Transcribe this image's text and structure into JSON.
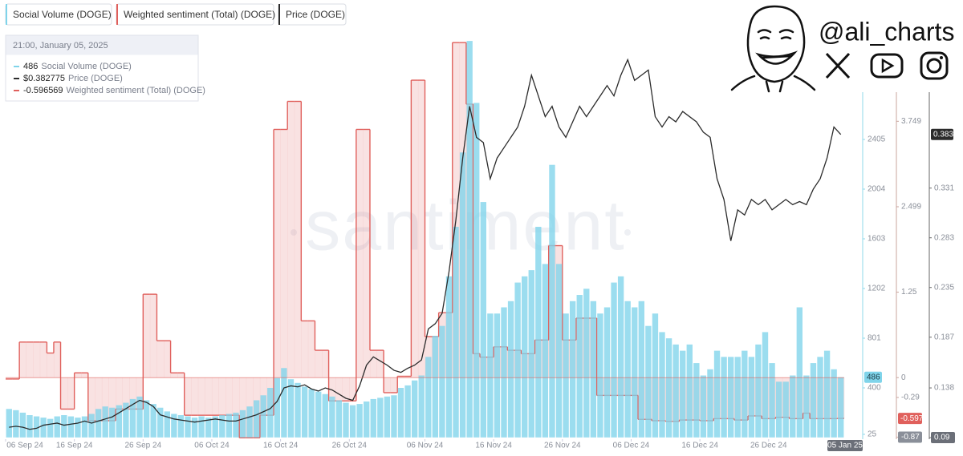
{
  "chart_data": {
    "type": "combo",
    "x": [
      "2024-09-06",
      "2024-09-07",
      "2024-09-08",
      "2024-09-09",
      "2024-09-10",
      "2024-09-11",
      "2024-09-12",
      "2024-09-13",
      "2024-09-14",
      "2024-09-15",
      "2024-09-16",
      "2024-09-17",
      "2024-09-18",
      "2024-09-19",
      "2024-09-20",
      "2024-09-21",
      "2024-09-22",
      "2024-09-23",
      "2024-09-24",
      "2024-09-25",
      "2024-09-26",
      "2024-09-27",
      "2024-09-28",
      "2024-09-29",
      "2024-09-30",
      "2024-10-01",
      "2024-10-02",
      "2024-10-03",
      "2024-10-04",
      "2024-10-05",
      "2024-10-06",
      "2024-10-07",
      "2024-10-08",
      "2024-10-09",
      "2024-10-10",
      "2024-10-11",
      "2024-10-12",
      "2024-10-13",
      "2024-10-14",
      "2024-10-15",
      "2024-10-16",
      "2024-10-17",
      "2024-10-18",
      "2024-10-19",
      "2024-10-20",
      "2024-10-21",
      "2024-10-22",
      "2024-10-23",
      "2024-10-24",
      "2024-10-25",
      "2024-10-26",
      "2024-10-27",
      "2024-10-28",
      "2024-10-29",
      "2024-10-30",
      "2024-10-31",
      "2024-11-01",
      "2024-11-02",
      "2024-11-03",
      "2024-11-04",
      "2024-11-05",
      "2024-11-06",
      "2024-11-07",
      "2024-11-08",
      "2024-11-09",
      "2024-11-10",
      "2024-11-11",
      "2024-11-12",
      "2024-11-13",
      "2024-11-14",
      "2024-11-15",
      "2024-11-16",
      "2024-11-17",
      "2024-11-18",
      "2024-11-19",
      "2024-11-20",
      "2024-11-21",
      "2024-11-22",
      "2024-11-23",
      "2024-11-24",
      "2024-11-25",
      "2024-11-26",
      "2024-11-27",
      "2024-11-28",
      "2024-11-29",
      "2024-11-30",
      "2024-12-01",
      "2024-12-02",
      "2024-12-03",
      "2024-12-04",
      "2024-12-05",
      "2024-12-06",
      "2024-12-07",
      "2024-12-08",
      "2024-12-09",
      "2024-12-10",
      "2024-12-11",
      "2024-12-12",
      "2024-12-13",
      "2024-12-14",
      "2024-12-15",
      "2024-12-16",
      "2024-12-17",
      "2024-12-18",
      "2024-12-19",
      "2024-12-20",
      "2024-12-21",
      "2024-12-22",
      "2024-12-23",
      "2024-12-24",
      "2024-12-25",
      "2024-12-26",
      "2024-12-27",
      "2024-12-28",
      "2024-12-29",
      "2024-12-30",
      "2024-12-31",
      "2025-01-01",
      "2025-01-02",
      "2025-01-03",
      "2025-01-04",
      "2025-01-05"
    ],
    "xlim": [
      "2024-09-06",
      "2025-01-06"
    ],
    "xticks": [
      {
        "value": "2024-09-06",
        "label": "06 Sep 24"
      },
      {
        "value": "2024-09-16",
        "label": "16 Sep 24"
      },
      {
        "value": "2024-09-26",
        "label": "26 Sep 24"
      },
      {
        "value": "2024-10-06",
        "label": "06 Oct 24"
      },
      {
        "value": "2024-10-16",
        "label": "16 Oct 24"
      },
      {
        "value": "2024-10-26",
        "label": "26 Oct 24"
      },
      {
        "value": "2024-11-06",
        "label": "06 Nov 24"
      },
      {
        "value": "2024-11-16",
        "label": "16 Nov 24"
      },
      {
        "value": "2024-11-26",
        "label": "26 Nov 24"
      },
      {
        "value": "2024-12-06",
        "label": "06 Dec 24"
      },
      {
        "value": "2024-12-16",
        "label": "16 Dec 24"
      },
      {
        "value": "2024-12-26",
        "label": "26 Dec 24"
      }
    ],
    "series": [
      {
        "name": "Social Volume (DOGE)",
        "type": "bar",
        "axis": "y",
        "color": "#7fd4ea",
        "values": [
          230,
          220,
          200,
          180,
          170,
          160,
          150,
          170,
          180,
          170,
          160,
          170,
          190,
          230,
          250,
          240,
          260,
          280,
          310,
          330,
          300,
          270,
          240,
          210,
          190,
          180,
          170,
          160,
          170,
          160,
          170,
          180,
          190,
          200,
          220,
          250,
          300,
          340,
          400,
          480,
          560,
          470,
          440,
          410,
          390,
          370,
          350,
          330,
          300,
          280,
          260,
          270,
          290,
          310,
          320,
          330,
          340,
          400,
          420,
          460,
          500,
          650,
          820,
          900,
          1300,
          1700,
          2300,
          3200,
          2700,
          1900,
          1000,
          1000,
          1050,
          1100,
          1250,
          1300,
          1350,
          1700,
          1400,
          2200,
          1400,
          1000,
          1100,
          1150,
          1200,
          1100,
          1000,
          1050,
          1250,
          1300,
          1100,
          1050,
          1100,
          900,
          1000,
          850,
          800,
          750,
          700,
          750,
          600,
          500,
          550,
          700,
          650,
          650,
          650,
          700,
          650,
          750,
          850,
          600,
          450,
          450,
          500,
          1050,
          500,
          600,
          650,
          700,
          550,
          486
        ]
      },
      {
        "name": "Weighted sentiment (Total) (DOGE)",
        "type": "area",
        "axis": "y2",
        "color": "#e0605c",
        "values": [
          -0.02,
          -0.02,
          0.52,
          0.52,
          0.52,
          0.52,
          0.36,
          0.52,
          -0.46,
          -0.46,
          0.07,
          0.07,
          -0.63,
          -0.63,
          -0.63,
          -0.63,
          -0.46,
          -0.46,
          -0.46,
          -0.46,
          1.22,
          1.22,
          0.54,
          0.54,
          0.07,
          0.07,
          -0.55,
          -0.55,
          -0.55,
          -0.55,
          -0.55,
          -0.55,
          -0.55,
          -0.55,
          -0.88,
          -0.88,
          -0.88,
          -0.55,
          -0.55,
          3.63,
          3.63,
          4.04,
          4.04,
          0.83,
          0.83,
          0.4,
          0.4,
          -0.34,
          -0.34,
          -0.34,
          -0.34,
          3.63,
          3.63,
          0.4,
          0.4,
          -0.22,
          -0.22,
          0.02,
          0.02,
          4.35,
          4.35,
          0.6,
          0.6,
          0.95,
          0.95,
          4.9,
          4.9,
          4.0,
          0.35,
          0.3,
          0.3,
          0.45,
          0.45,
          0.4,
          0.4,
          0.35,
          0.35,
          0.55,
          0.55,
          1.93,
          1.93,
          0.55,
          0.55,
          0.87,
          0.87,
          0.87,
          -0.26,
          -0.26,
          -0.26,
          -0.26,
          -0.26,
          -0.26,
          -0.61,
          -0.61,
          -0.63,
          -0.63,
          -0.64,
          -0.64,
          -0.62,
          -0.62,
          -0.62,
          -0.63,
          -0.63,
          -0.6,
          -0.6,
          -0.6,
          -0.62,
          -0.62,
          -0.56,
          -0.56,
          -0.6,
          -0.6,
          -0.58,
          -0.58,
          -0.6,
          -0.6,
          -0.52,
          -0.6,
          -0.6,
          -0.6,
          -0.6,
          -0.596569
        ]
      },
      {
        "name": "Price (DOGE)",
        "type": "line",
        "axis": "y3",
        "color": "#2b2b2b",
        "values": [
          0.1,
          0.101,
          0.1,
          0.098,
          0.099,
          0.102,
          0.103,
          0.104,
          0.102,
          0.103,
          0.104,
          0.106,
          0.104,
          0.106,
          0.108,
          0.11,
          0.114,
          0.118,
          0.122,
          0.126,
          0.124,
          0.12,
          0.112,
          0.11,
          0.108,
          0.107,
          0.106,
          0.105,
          0.106,
          0.107,
          0.108,
          0.107,
          0.106,
          0.106,
          0.108,
          0.11,
          0.112,
          0.115,
          0.118,
          0.125,
          0.138,
          0.14,
          0.139,
          0.141,
          0.137,
          0.135,
          0.138,
          0.136,
          0.132,
          0.128,
          0.126,
          0.14,
          0.16,
          0.168,
          0.164,
          0.16,
          0.155,
          0.153,
          0.157,
          0.16,
          0.165,
          0.195,
          0.2,
          0.21,
          0.25,
          0.3,
          0.36,
          0.41,
          0.38,
          0.375,
          0.34,
          0.36,
          0.37,
          0.38,
          0.39,
          0.41,
          0.44,
          0.42,
          0.4,
          0.41,
          0.39,
          0.38,
          0.395,
          0.41,
          0.4,
          0.41,
          0.42,
          0.43,
          0.42,
          0.44,
          0.455,
          0.435,
          0.44,
          0.445,
          0.4,
          0.39,
          0.4,
          0.395,
          0.405,
          0.4,
          0.395,
          0.385,
          0.38,
          0.34,
          0.32,
          0.28,
          0.31,
          0.305,
          0.32,
          0.315,
          0.32,
          0.31,
          0.315,
          0.32,
          0.315,
          0.318,
          0.315,
          0.33,
          0.34,
          0.36,
          0.39,
          0.382775
        ]
      }
    ],
    "ylim": [
      -14,
      3220
    ],
    "yticks": [
      25,
      400,
      801,
      1202,
      1603,
      2004,
      2405
    ],
    "y2lim": [
      -0.9,
      4.96
    ],
    "y2ticks": [
      3.749,
      2.499,
      1.25,
      0,
      -0.29,
      -0.87
    ],
    "y3lim": [
      0.0885,
      0.4755
    ],
    "y3ticks": [
      0.331,
      0.283,
      0.235,
      0.187,
      0.138,
      0.09
    ],
    "tooltip": {
      "title": "21:00, January 05, 2025",
      "items": [
        {
          "value": "486",
          "name": "Social Volume (DOGE)",
          "color": "#7fd4ea"
        },
        {
          "value": "$0.382775",
          "name": "Price (DOGE)",
          "color": "#2b2b2b"
        },
        {
          "value": "-0.596569",
          "name": "Weighted sentiment (Total) (DOGE)",
          "color": "#e0605c"
        }
      ]
    },
    "cursor": {
      "x": "2025-01-05",
      "label": "05 Jan 25",
      "social": 486,
      "sentiment": {
        "value": -0.596569,
        "label": "-0.597"
      },
      "price": {
        "value": 0.382775,
        "label": "0.383"
      }
    }
  },
  "watermark": "santiment",
  "branding": {
    "handle": "@ali_charts"
  }
}
